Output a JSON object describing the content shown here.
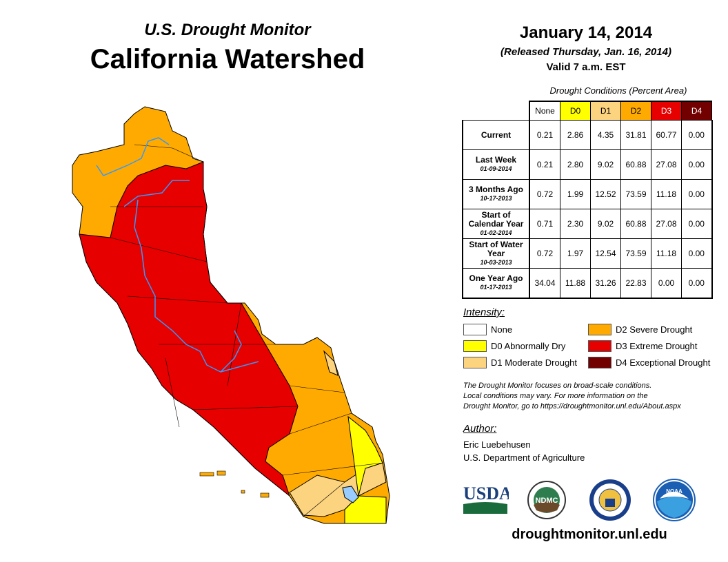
{
  "header": {
    "subtitle": "U.S. Drought Monitor",
    "title": "California Watershed"
  },
  "date": {
    "main": "January 14, 2014",
    "released": "(Released Thursday, Jan. 16, 2014)",
    "valid": "Valid 7 a.m. EST"
  },
  "table": {
    "caption": "Drought Conditions (Percent Area)",
    "columns": [
      "None",
      "D0",
      "D1",
      "D2",
      "D3",
      "D4"
    ],
    "column_colors": [
      "#ffffff",
      "#ffff00",
      "#fcd37f",
      "#ffaa00",
      "#e60000",
      "#730000"
    ],
    "rows": [
      {
        "label": "Current",
        "date": "",
        "values": [
          "0.21",
          "2.86",
          "4.35",
          "31.81",
          "60.77",
          "0.00"
        ]
      },
      {
        "label": "Last Week",
        "date": "01-09-2014",
        "values": [
          "0.21",
          "2.80",
          "9.02",
          "60.88",
          "27.08",
          "0.00"
        ]
      },
      {
        "label": "3 Months Ago",
        "date": "10-17-2013",
        "values": [
          "0.72",
          "1.99",
          "12.52",
          "73.59",
          "11.18",
          "0.00"
        ]
      },
      {
        "label": "Start of Calendar Year",
        "date": "01-02-2014",
        "values": [
          "0.71",
          "2.30",
          "9.02",
          "60.88",
          "27.08",
          "0.00"
        ]
      },
      {
        "label": "Start of Water Year",
        "date": "10-03-2013",
        "values": [
          "0.72",
          "1.97",
          "12.54",
          "73.59",
          "11.18",
          "0.00"
        ]
      },
      {
        "label": "One Year Ago",
        "date": "01-17-2013",
        "values": [
          "34.04",
          "11.88",
          "31.26",
          "22.83",
          "0.00",
          "0.00"
        ]
      }
    ]
  },
  "legend": {
    "title": "Intensity:",
    "items": [
      {
        "label": "None",
        "color": "#ffffff"
      },
      {
        "label": "D0 Abnormally Dry",
        "color": "#ffff00"
      },
      {
        "label": "D1 Moderate Drought",
        "color": "#fcd37f"
      },
      {
        "label": "D2 Severe Drought",
        "color": "#ffaa00"
      },
      {
        "label": "D3 Extreme Drought",
        "color": "#e60000"
      },
      {
        "label": "D4 Exceptional Drought",
        "color": "#730000"
      }
    ]
  },
  "note": [
    "The Drought Monitor focuses on broad-scale conditions.",
    "Local conditions may vary. For more information on the",
    "Drought Monitor, go to https://droughtmonitor.unl.edu/About.aspx"
  ],
  "author": {
    "title": "Author:",
    "name": "Eric Luebehusen",
    "org": "U.S. Department of Agriculture"
  },
  "logos": [
    "USDA",
    "NDMC",
    "Department of Commerce",
    "NOAA"
  ],
  "footer": {
    "url": "droughtmonitor.unl.edu"
  }
}
